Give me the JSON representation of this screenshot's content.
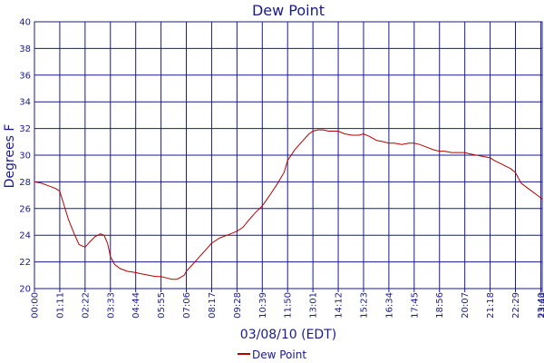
{
  "chart_data": {
    "type": "line",
    "title": "Dew Point",
    "xlabel": "03/08/10 (EDT)",
    "ylabel": "Degrees F",
    "ylim": [
      20,
      40
    ],
    "yticks": [
      20,
      22,
      24,
      26,
      28,
      30,
      32,
      34,
      36,
      38,
      40
    ],
    "xlim": [
      "00:00",
      "23:44"
    ],
    "xticks": [
      "00:00",
      "01:11",
      "02:22",
      "03:33",
      "04:44",
      "05:55",
      "07:06",
      "08:17",
      "09:28",
      "10:39",
      "11:50",
      "13:01",
      "14:12",
      "15:23",
      "16:34",
      "17:45",
      "18:56",
      "20:07",
      "21:18",
      "22:29",
      "23:40",
      "23:44"
    ],
    "grid": true,
    "legend_position": "bottom",
    "colors": {
      "series": "#b30000",
      "grid": "#1a1a8c",
      "text": "#1a1a8c"
    },
    "series": [
      {
        "name": "Dew Point",
        "x": [
          "00:00",
          "00:20",
          "00:40",
          "01:00",
          "01:11",
          "01:20",
          "01:35",
          "01:50",
          "02:05",
          "02:22",
          "02:35",
          "02:50",
          "03:05",
          "03:15",
          "03:25",
          "03:33",
          "03:45",
          "04:00",
          "04:20",
          "04:44",
          "05:00",
          "05:20",
          "05:40",
          "05:55",
          "06:10",
          "06:25",
          "06:40",
          "07:00",
          "07:06",
          "07:20",
          "07:40",
          "08:00",
          "08:17",
          "08:40",
          "09:00",
          "09:28",
          "09:45",
          "10:00",
          "10:20",
          "10:39",
          "11:00",
          "11:20",
          "11:40",
          "11:50",
          "12:10",
          "12:30",
          "12:50",
          "13:01",
          "13:15",
          "13:30",
          "13:45",
          "14:00",
          "14:12",
          "14:30",
          "14:50",
          "15:10",
          "15:23",
          "15:40",
          "16:00",
          "16:20",
          "16:34",
          "16:50",
          "17:10",
          "17:30",
          "17:45",
          "18:00",
          "18:20",
          "18:40",
          "18:56",
          "19:10",
          "19:30",
          "19:50",
          "20:07",
          "20:20",
          "20:40",
          "21:00",
          "21:18",
          "21:30",
          "21:45",
          "22:00",
          "22:15",
          "22:29",
          "22:45",
          "23:00",
          "23:15",
          "23:30",
          "23:40",
          "23:44"
        ],
        "values": [
          28.0,
          27.9,
          27.7,
          27.5,
          27.3,
          26.5,
          25.2,
          24.2,
          23.3,
          23.1,
          23.5,
          23.9,
          24.1,
          24.0,
          23.4,
          22.4,
          21.8,
          21.5,
          21.3,
          21.2,
          21.1,
          21.0,
          20.9,
          20.9,
          20.8,
          20.7,
          20.7,
          21.0,
          21.3,
          21.7,
          22.3,
          22.9,
          23.4,
          23.8,
          24.0,
          24.3,
          24.6,
          25.1,
          25.7,
          26.2,
          27.0,
          27.8,
          28.7,
          29.6,
          30.4,
          31.0,
          31.6,
          31.8,
          31.9,
          31.9,
          31.8,
          31.8,
          31.8,
          31.6,
          31.5,
          31.5,
          31.6,
          31.4,
          31.1,
          31.0,
          30.9,
          30.9,
          30.8,
          30.9,
          30.9,
          30.8,
          30.6,
          30.4,
          30.3,
          30.3,
          30.2,
          30.2,
          30.2,
          30.1,
          30.0,
          29.9,
          29.8,
          29.6,
          29.4,
          29.2,
          29.0,
          28.7,
          27.9,
          27.6,
          27.3,
          27.0,
          26.8,
          26.7
        ]
      }
    ]
  }
}
